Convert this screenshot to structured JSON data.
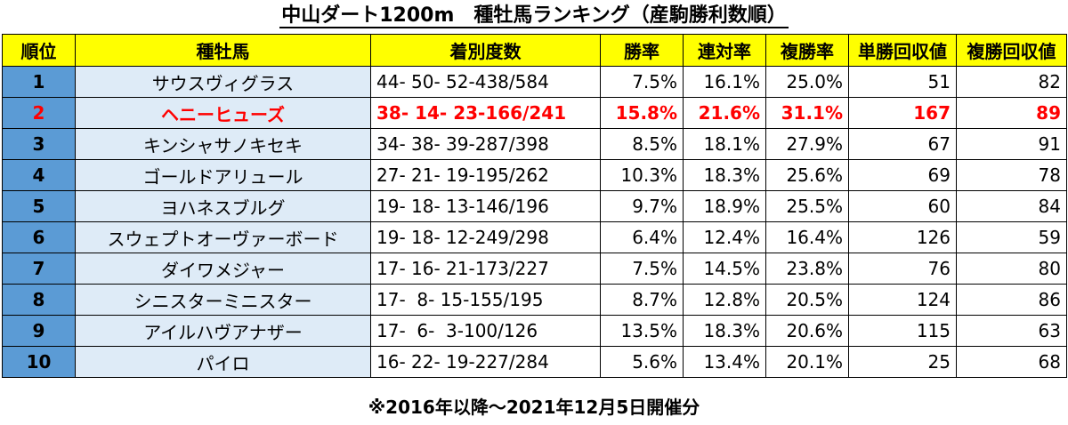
{
  "title": "中山ダート1200m　種牡馬ランキング（産駒勝利数順）",
  "columns": [
    "順位",
    "種牡馬",
    "着別度数",
    "勝率",
    "連対率",
    "複勝率",
    "単勝回収値",
    "複勝回収値"
  ],
  "rows": [
    {
      "rank": "1",
      "sire": "サウスヴィグラス",
      "record": "44- 50- 52-438/584",
      "win": "7.5%",
      "quinella": "16.1%",
      "show": "25.0%",
      "win_return": "51",
      "show_return": "82",
      "highlight": false
    },
    {
      "rank": "2",
      "sire": "ヘニーヒューズ",
      "record": "38- 14- 23-166/241",
      "win": "15.8%",
      "quinella": "21.6%",
      "show": "31.1%",
      "win_return": "167",
      "show_return": "89",
      "highlight": true
    },
    {
      "rank": "3",
      "sire": "キンシャサノキセキ",
      "record": "34- 38- 39-287/398",
      "win": "8.5%",
      "quinella": "18.1%",
      "show": "27.9%",
      "win_return": "67",
      "show_return": "91",
      "highlight": false
    },
    {
      "rank": "4",
      "sire": "ゴールドアリュール",
      "record": "27- 21- 19-195/262",
      "win": "10.3%",
      "quinella": "18.3%",
      "show": "25.6%",
      "win_return": "69",
      "show_return": "78",
      "highlight": false
    },
    {
      "rank": "5",
      "sire": "ヨハネスブルグ",
      "record": "19- 18- 13-146/196",
      "win": "9.7%",
      "quinella": "18.9%",
      "show": "25.5%",
      "win_return": "60",
      "show_return": "84",
      "highlight": false
    },
    {
      "rank": "6",
      "sire": "スウェプトオーヴァーボード",
      "record": "19- 18- 12-249/298",
      "win": "6.4%",
      "quinella": "12.4%",
      "show": "16.4%",
      "win_return": "126",
      "show_return": "59",
      "highlight": false
    },
    {
      "rank": "7",
      "sire": "ダイワメジャー",
      "record": "17- 16- 21-173/227",
      "win": "7.5%",
      "quinella": "14.5%",
      "show": "23.8%",
      "win_return": "76",
      "show_return": "80",
      "highlight": false
    },
    {
      "rank": "8",
      "sire": "シニスターミニスター",
      "record": "17-  8- 15-155/195",
      "win": "8.7%",
      "quinella": "12.8%",
      "show": "20.5%",
      "win_return": "124",
      "show_return": "86",
      "highlight": false
    },
    {
      "rank": "9",
      "sire": "アイルハヴアナザー",
      "record": "17-  6-  3-100/126",
      "win": "13.5%",
      "quinella": "18.3%",
      "show": "20.6%",
      "win_return": "115",
      "show_return": "63",
      "highlight": false
    },
    {
      "rank": "10",
      "sire": "パイロ",
      "record": "16- 22- 19-227/284",
      "win": "5.6%",
      "quinella": "13.4%",
      "show": "20.1%",
      "win_return": "25",
      "show_return": "68",
      "highlight": false
    }
  ],
  "footnote": "※2016年以降～2021年12月5日開催分",
  "colors": {
    "header_bg": "#ffff00",
    "rank_bg": "#5b9bd5",
    "sire_bg": "#deebf7",
    "highlight": "#ff0000"
  }
}
